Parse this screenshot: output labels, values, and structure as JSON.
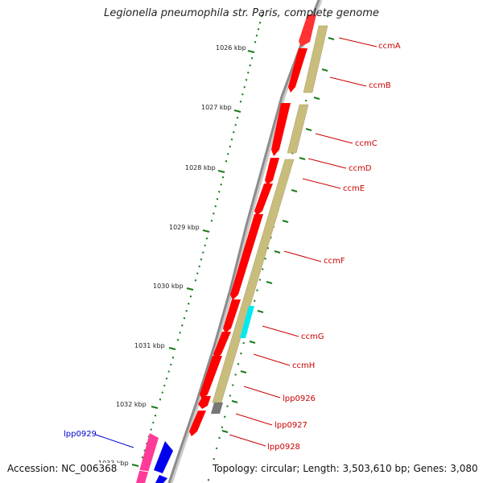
{
  "title": "Legionella pneumophila str. Paris, complete genome",
  "ruler": [
    {
      "label": "1026 kbp"
    },
    {
      "label": "1027 kbp"
    },
    {
      "label": "1028 kbp"
    },
    {
      "label": "1029 kbp"
    },
    {
      "label": "1030 kbp"
    },
    {
      "label": "1031 kbp"
    },
    {
      "label": "1032 kbp"
    },
    {
      "label": "1033 kbp"
    }
  ],
  "genes": [
    {
      "label": "ccmA"
    },
    {
      "label": "ccmB"
    },
    {
      "label": "ccmC"
    },
    {
      "label": "ccmD"
    },
    {
      "label": "ccmE"
    },
    {
      "label": "ccmF"
    },
    {
      "label": "ccmG"
    },
    {
      "label": "ccmH"
    },
    {
      "label": "lpp0926"
    },
    {
      "label": "lpp0927"
    },
    {
      "label": "lpp0928"
    },
    {
      "label": "lpp0929"
    }
  ],
  "footer": {
    "accession": "Accession: NC_006368",
    "topology": "Topology: circular; Length: 3,503,610 bp; Genes: 3,080"
  },
  "colors": {
    "forward_cds": "#ff0000",
    "reverse_cds": "#0000ee",
    "cog_band": "#c8bd7d",
    "cog_highlight": "#00eaf0",
    "pink_feature": "#ff3a98",
    "backbone": "#8c8c8c",
    "ruler_ticks": "#1a7a1a",
    "forward_label": "#cc0000",
    "reverse_label": "#0000cc"
  }
}
